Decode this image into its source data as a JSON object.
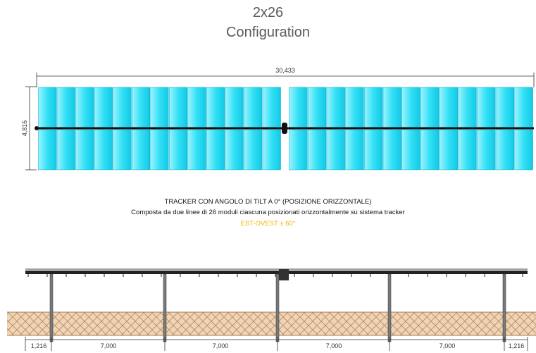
{
  "title": {
    "line1": "2x26",
    "line2": "Configuration"
  },
  "plan_view": {
    "overall_length": "30,433",
    "width": "4,816",
    "rows": 2,
    "modules_per_row": 26,
    "module_color": "#33e0f5"
  },
  "caption": {
    "line1": "TRACKER CON ANGOLO DI TILT A 0° (POSIZIONE ORIZZONTALE)",
    "line2": "Composta da due linee di 26 moduli ciascuna posizionati orizzontalmente su sistema tracker",
    "line3": "EST-OVEST ± 60°",
    "accent_color": "#f0b400"
  },
  "elevation_view": {
    "spans": [
      "1,216",
      "7,000",
      "7,000",
      "7,000",
      "7,000",
      "1,216"
    ],
    "ground_color": "#e8c9a6"
  }
}
